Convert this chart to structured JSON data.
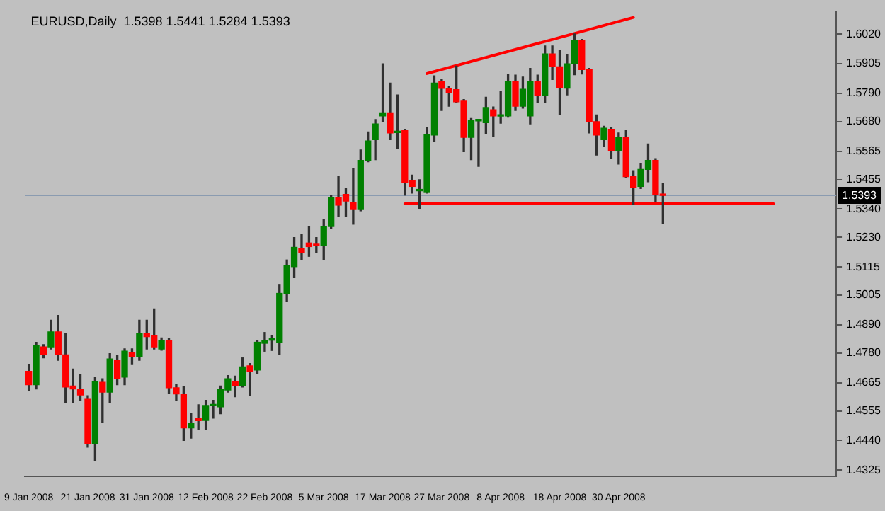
{
  "chart_data": {
    "type": "candlestick",
    "title": "EURUSD,Daily  1.5398 1.5441 1.5284 1.5393",
    "categories": [
      "9 Jan 2008",
      null,
      null,
      null,
      null,
      null,
      null,
      null,
      "21 Jan 2008",
      null,
      null,
      null,
      null,
      null,
      null,
      null,
      "31 Jan 2008",
      null,
      null,
      null,
      null,
      null,
      null,
      null,
      "12 Feb 2008",
      null,
      null,
      null,
      null,
      null,
      null,
      null,
      "22 Feb 2008",
      null,
      null,
      null,
      null,
      null,
      null,
      null,
      "5 Mar 2008",
      null,
      null,
      null,
      null,
      null,
      null,
      null,
      "17 Mar 2008",
      null,
      null,
      null,
      null,
      null,
      null,
      null,
      "27 Mar 2008",
      null,
      null,
      null,
      null,
      null,
      null,
      null,
      "8 Apr 2008",
      null,
      null,
      null,
      null,
      null,
      null,
      null,
      "18 Apr 2008",
      null,
      null,
      null,
      null,
      null,
      null,
      null,
      "30 Apr 2008",
      null,
      null,
      null,
      null,
      null,
      null,
      null,
      null,
      null,
      null,
      null,
      null,
      null,
      null,
      null,
      null,
      null,
      null,
      null,
      null,
      null,
      null,
      null,
      null,
      null,
      null,
      null,
      null,
      null
    ],
    "ohlc": [
      [
        1.4709,
        1.4735,
        1.4635,
        1.4657
      ],
      [
        1.4657,
        1.4822,
        1.464,
        1.4809
      ],
      [
        1.4804,
        1.4813,
        1.4761,
        1.4773
      ],
      [
        1.4804,
        1.4908,
        1.4796,
        1.4862
      ],
      [
        1.4862,
        1.4926,
        1.4752,
        1.4773
      ],
      [
        1.4773,
        1.4856,
        1.4588,
        1.4648
      ],
      [
        1.4652,
        1.4718,
        1.4588,
        1.464
      ],
      [
        1.464,
        1.4697,
        1.4596,
        1.4617
      ],
      [
        1.46,
        1.4614,
        1.4414,
        1.4427
      ],
      [
        1.4427,
        1.4686,
        1.4362,
        1.4669
      ],
      [
        1.4666,
        1.468,
        1.451,
        1.4628
      ],
      [
        1.4628,
        1.4778,
        1.4588,
        1.4757
      ],
      [
        1.4752,
        1.477,
        1.4657,
        1.468
      ],
      [
        1.4686,
        1.4796,
        1.4657,
        1.4787
      ],
      [
        1.4783,
        1.4796,
        1.4735,
        1.4766
      ],
      [
        1.4766,
        1.4908,
        1.4752,
        1.4856
      ],
      [
        1.4856,
        1.4908,
        1.4796,
        1.4844
      ],
      [
        1.4847,
        1.4952,
        1.4796,
        1.4804
      ],
      [
        1.4796,
        1.4839,
        1.4791,
        1.4829
      ],
      [
        1.4829,
        1.4836,
        1.4622,
        1.4645
      ],
      [
        1.4645,
        1.4657,
        1.4596,
        1.4621
      ],
      [
        1.4621,
        1.4648,
        1.444,
        1.4489
      ],
      [
        1.4489,
        1.4544,
        1.4449,
        1.4505
      ],
      [
        1.4527,
        1.4579,
        1.4484,
        1.4517
      ],
      [
        1.4518,
        1.4596,
        1.4484,
        1.4576
      ],
      [
        1.4575,
        1.4596,
        1.4527,
        1.4577
      ],
      [
        1.4571,
        1.4652,
        1.4544,
        1.464
      ],
      [
        1.4636,
        1.4692,
        1.4628,
        1.468
      ],
      [
        1.4669,
        1.469,
        1.461,
        1.4652
      ],
      [
        1.4652,
        1.4761,
        1.4648,
        1.4726
      ],
      [
        1.473,
        1.4739,
        1.4614,
        1.4709
      ],
      [
        1.4714,
        1.483,
        1.47,
        1.4822
      ],
      [
        1.4818,
        1.486,
        1.4787,
        1.483
      ],
      [
        1.483,
        1.4848,
        1.479,
        1.4831
      ],
      [
        1.4822,
        1.5047,
        1.4773,
        1.5012
      ],
      [
        1.5012,
        1.5142,
        1.4981,
        1.512
      ],
      [
        1.5116,
        1.5229,
        1.5073,
        1.5191
      ],
      [
        1.5186,
        1.5241,
        1.5143,
        1.5172
      ],
      [
        1.5208,
        1.5272,
        1.5156,
        1.5194
      ],
      [
        1.52,
        1.5229,
        1.5172,
        1.5198
      ],
      [
        1.5198,
        1.5298,
        1.5143,
        1.5272
      ],
      [
        1.5272,
        1.5394,
        1.5264,
        1.5385
      ],
      [
        1.5385,
        1.5466,
        1.5311,
        1.5355
      ],
      [
        1.5397,
        1.542,
        1.5311,
        1.5371
      ],
      [
        1.5364,
        1.5498,
        1.5281,
        1.5338
      ],
      [
        1.5338,
        1.557,
        1.5333,
        1.5529
      ],
      [
        1.5527,
        1.564,
        1.5524,
        1.5605
      ],
      [
        1.561,
        1.5688,
        1.5532,
        1.5671
      ],
      [
        1.5702,
        1.5905,
        1.568,
        1.5714
      ],
      [
        1.5714,
        1.583,
        1.561,
        1.5636
      ],
      [
        1.5637,
        1.5784,
        1.5576,
        1.5638
      ],
      [
        1.5645,
        1.565,
        1.5394,
        1.5442
      ],
      [
        1.5451,
        1.5472,
        1.5402,
        1.5428
      ],
      [
        1.5411,
        1.5454,
        1.5342,
        1.5412
      ],
      [
        1.5407,
        1.5657,
        1.5402,
        1.5628
      ],
      [
        1.5628,
        1.5858,
        1.5602,
        1.583
      ],
      [
        1.5835,
        1.5844,
        1.5723,
        1.5809
      ],
      [
        1.5809,
        1.5818,
        1.574,
        1.5792
      ],
      [
        1.5804,
        1.5896,
        1.5754,
        1.5757
      ],
      [
        1.5762,
        1.5766,
        1.5563,
        1.5619
      ],
      [
        1.5619,
        1.5692,
        1.5532,
        1.5685
      ],
      [
        1.5683,
        1.5688,
        1.5506,
        1.5684
      ],
      [
        1.5676,
        1.5775,
        1.5633,
        1.5735
      ],
      [
        1.5726,
        1.5737,
        1.5622,
        1.5702
      ],
      [
        1.5701,
        1.5796,
        1.5674,
        1.5702
      ],
      [
        1.5702,
        1.5865,
        1.5697,
        1.5835
      ],
      [
        1.5835,
        1.5861,
        1.5723,
        1.574
      ],
      [
        1.574,
        1.5853,
        1.5732,
        1.5806
      ],
      [
        1.5702,
        1.5887,
        1.5671,
        1.5835
      ],
      [
        1.5835,
        1.5861,
        1.5754,
        1.5782
      ],
      [
        1.5782,
        1.5974,
        1.5754,
        1.5943
      ],
      [
        1.5943,
        1.5974,
        1.5844,
        1.5893
      ],
      [
        1.5893,
        1.5957,
        1.5709,
        1.5813
      ],
      [
        1.581,
        1.5939,
        1.5784,
        1.5905
      ],
      [
        1.5905,
        1.6021,
        1.5862,
        1.5995
      ],
      [
        1.5995,
        1.6,
        1.5865,
        1.5882
      ],
      [
        1.5882,
        1.5887,
        1.5636,
        1.568
      ],
      [
        1.568,
        1.5706,
        1.555,
        1.5628
      ],
      [
        1.561,
        1.5662,
        1.5584,
        1.5654
      ],
      [
        1.565,
        1.5657,
        1.5536,
        1.5567
      ],
      [
        1.5567,
        1.5636,
        1.5515,
        1.5619
      ],
      [
        1.5619,
        1.5645,
        1.5463,
        1.5466
      ],
      [
        1.5466,
        1.5489,
        1.5359,
        1.5423
      ],
      [
        1.5428,
        1.5515,
        1.542,
        1.5494
      ],
      [
        1.5494,
        1.5593,
        1.5446,
        1.5529
      ],
      [
        1.5529,
        1.5536,
        1.5368,
        1.5397
      ],
      [
        1.5398,
        1.5441,
        1.5284,
        1.5393
      ],
      null,
      null,
      null,
      null,
      null,
      null,
      null,
      null,
      null,
      null,
      null,
      null,
      null,
      null,
      null,
      null,
      null,
      null,
      null,
      null,
      null,
      null,
      null
    ],
    "colors": [
      "#ff0000",
      "#008000",
      "#ff0000",
      "#008000",
      "#ff0000",
      "#ff0000",
      "#ff0000",
      "#ff0000",
      "#ff0000",
      "#008000",
      "#ff0000",
      "#008000",
      "#ff0000",
      "#008000",
      "#ff0000",
      "#008000",
      "#ff0000",
      "#ff0000",
      "#008000",
      "#ff0000",
      "#ff0000",
      "#ff0000",
      "#008000",
      "#ff0000",
      "#008000",
      "#008000",
      "#008000",
      "#008000",
      "#ff0000",
      "#008000",
      "#ff0000",
      "#008000",
      "#008000",
      "#008000",
      "#008000",
      "#008000",
      "#008000",
      "#ff0000",
      "#ff0000",
      "#ff0000",
      "#008000",
      "#008000",
      "#ff0000",
      "#ff0000",
      "#ff0000",
      "#008000",
      "#008000",
      "#008000",
      "#008000",
      "#ff0000",
      "#008000",
      "#ff0000",
      "#ff0000",
      "#008000",
      "#008000",
      "#008000",
      "#ff0000",
      "#ff0000",
      "#ff0000",
      "#ff0000",
      "#008000",
      "#008000",
      "#008000",
      "#ff0000",
      "#008000",
      "#008000",
      "#ff0000",
      "#008000",
      "#008000",
      "#ff0000",
      "#008000",
      "#ff0000",
      "#ff0000",
      "#008000",
      "#008000",
      "#ff0000",
      "#ff0000",
      "#ff0000",
      "#008000",
      "#ff0000",
      "#008000",
      "#ff0000",
      "#ff0000",
      "#008000",
      "#008000",
      "#ff0000",
      "#ff0000",
      null,
      null,
      null,
      null,
      null,
      null,
      null,
      null,
      null,
      null,
      null,
      null,
      null,
      null,
      null,
      null,
      null,
      null,
      null,
      null,
      null,
      null,
      null
    ],
    "series": [
      {
        "type": "line",
        "color": "#ff0000",
        "values": [
          null,
          null,
          null,
          null,
          null,
          null,
          null,
          null,
          null,
          null,
          null,
          null,
          null,
          null,
          null,
          null,
          null,
          null,
          null,
          null,
          null,
          null,
          null,
          null,
          null,
          null,
          null,
          null,
          null,
          null,
          null,
          null,
          null,
          null,
          null,
          null,
          null,
          null,
          null,
          null,
          null,
          null,
          null,
          null,
          null,
          null,
          null,
          null,
          null,
          null,
          null,
          null,
          null,
          null,
          1.5867,
          null,
          null,
          null,
          null,
          null,
          null,
          null,
          null,
          null,
          null,
          null,
          null,
          null,
          null,
          null,
          null,
          null,
          null,
          null,
          null,
          null,
          null,
          null,
          null,
          null,
          null,
          null,
          1.6085,
          null,
          null,
          null,
          null,
          null,
          null,
          null,
          null,
          null,
          null,
          null,
          null,
          null,
          null,
          null,
          null,
          null,
          null,
          null,
          null,
          null,
          null,
          null,
          null,
          null,
          null,
          null
        ]
      },
      {
        "type": "line",
        "color": "#ff0000",
        "values": [
          null,
          null,
          null,
          null,
          null,
          null,
          null,
          null,
          null,
          null,
          null,
          null,
          null,
          null,
          null,
          null,
          null,
          null,
          null,
          null,
          null,
          null,
          null,
          null,
          null,
          null,
          null,
          null,
          null,
          null,
          null,
          null,
          null,
          null,
          null,
          null,
          null,
          null,
          null,
          null,
          null,
          null,
          null,
          null,
          null,
          null,
          null,
          null,
          null,
          null,
          null,
          1.536,
          null,
          null,
          null,
          null,
          null,
          null,
          null,
          null,
          null,
          null,
          null,
          null,
          null,
          null,
          null,
          null,
          null,
          null,
          null,
          null,
          null,
          null,
          null,
          null,
          null,
          null,
          null,
          null,
          null,
          null,
          null,
          null,
          null,
          null,
          null,
          null,
          null,
          null,
          null,
          null,
          null,
          null,
          null,
          null,
          null,
          null,
          null,
          null,
          null,
          1.536,
          null,
          null,
          null,
          null,
          null,
          null,
          null,
          null
        ]
      }
    ],
    "ylim": [
      1.43,
      1.611
    ],
    "yticks": [
      {
        "value": 1.602,
        "label": "1.6020"
      },
      {
        "value": 1.5905,
        "label": "1.5905"
      },
      {
        "value": 1.579,
        "label": "1.5790"
      },
      {
        "value": 1.568,
        "label": "1.5680"
      },
      {
        "value": 1.5565,
        "label": "1.5565"
      },
      {
        "value": 1.5455,
        "label": "1.5455"
      },
      {
        "value": 1.534,
        "label": "1.5340"
      },
      {
        "value": 1.523,
        "label": "1.5230"
      },
      {
        "value": 1.5115,
        "label": "1.5115"
      },
      {
        "value": 1.5005,
        "label": "1.5005"
      },
      {
        "value": 1.489,
        "label": "1.4890"
      },
      {
        "value": 1.478,
        "label": "1.4780"
      },
      {
        "value": 1.4665,
        "label": "1.4665"
      },
      {
        "value": 1.4555,
        "label": "1.4555"
      },
      {
        "value": 1.444,
        "label": "1.4440"
      },
      {
        "value": 1.4325,
        "label": "1.4325"
      }
    ],
    "ref_lines": [
      {
        "axis": "y",
        "value": 1.5393,
        "label": "1.5393",
        "color": "#8a9bb0"
      }
    ],
    "grid": false,
    "legend": false,
    "marker": "none",
    "line_style": "solid"
  }
}
